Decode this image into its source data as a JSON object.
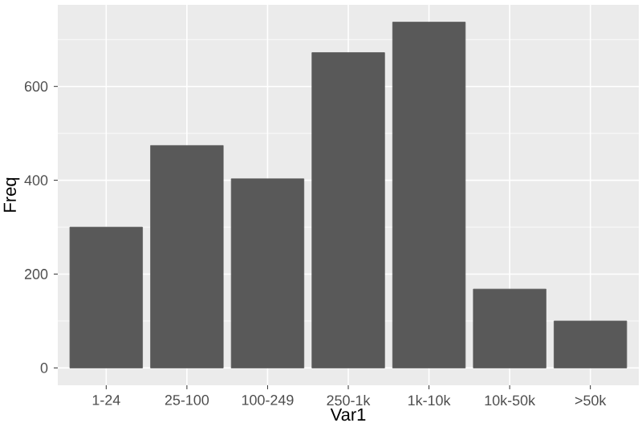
{
  "chart_data": {
    "type": "bar",
    "xlabel": "Var1",
    "ylabel": "Freq",
    "categories": [
      "1-24",
      "25-100",
      "100-249",
      "250-1k",
      "1k-10k",
      "10k-50k",
      ">50k"
    ],
    "values": [
      300,
      474,
      403,
      672,
      737,
      168,
      100
    ],
    "color": "#595959",
    "ylim": [
      -37,
      774
    ],
    "yticks": [
      0,
      200,
      400,
      600
    ],
    "grid": true
  }
}
